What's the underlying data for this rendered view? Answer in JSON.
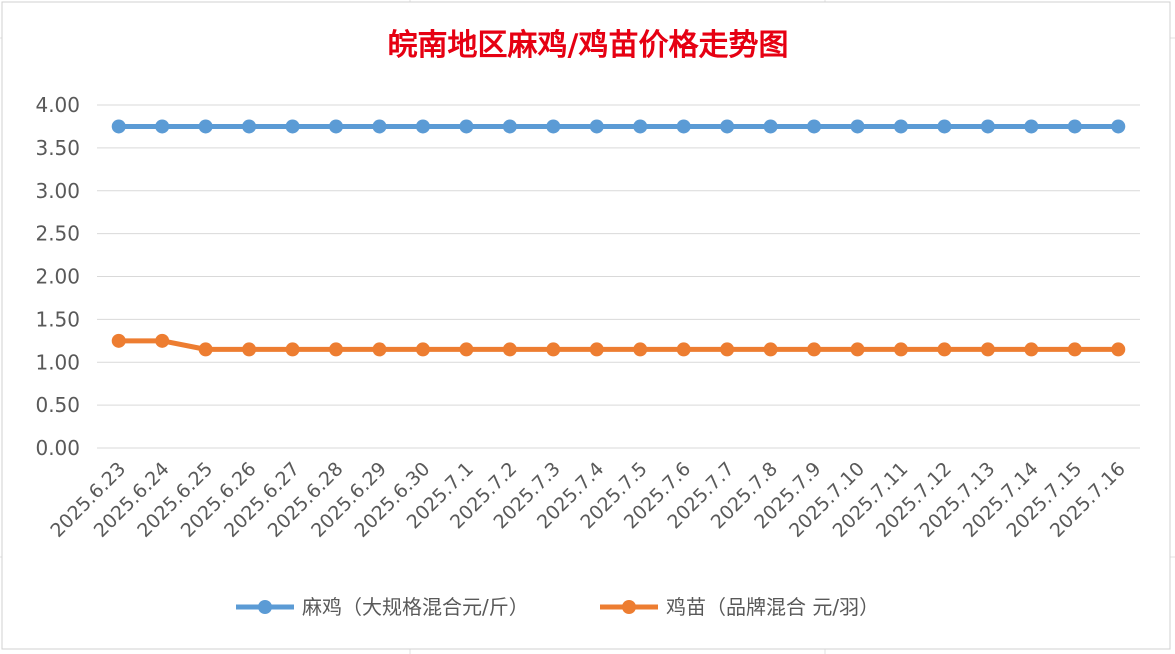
{
  "colors": {
    "title": "#e60012",
    "gridline": "#d9d9d9",
    "sheet_grid": "#e2e2e2",
    "series": [
      "#5b9bd5",
      "#ed7d31"
    ]
  },
  "chart_data": {
    "type": "line",
    "title": "皖南地区麻鸡/鸡苗价格走势图",
    "xlabel": "",
    "ylabel": "",
    "ylim": [
      0,
      4
    ],
    "ytick_step": 0.5,
    "ytick_decimals": 2,
    "grid": true,
    "legend_position": "bottom",
    "categories": [
      "2025.6.23",
      "2025.6.24",
      "2025.6.25",
      "2025.6.26",
      "2025.6.27",
      "2025.6.28",
      "2025.6.29",
      "2025.6.30",
      "2025.7.1",
      "2025.7.2",
      "2025.7.3",
      "2025.7.4",
      "2025.7.5",
      "2025.7.6",
      "2025.7.7",
      "2025.7.8",
      "2025.7.9",
      "2025.7.10",
      "2025.7.11",
      "2025.7.12",
      "2025.7.13",
      "2025.7.14",
      "2025.7.15",
      "2025.7.16"
    ],
    "series": [
      {
        "name": "麻鸡（大规格混合元/斤）",
        "values": [
          3.75,
          3.75,
          3.75,
          3.75,
          3.75,
          3.75,
          3.75,
          3.75,
          3.75,
          3.75,
          3.75,
          3.75,
          3.75,
          3.75,
          3.75,
          3.75,
          3.75,
          3.75,
          3.75,
          3.75,
          3.75,
          3.75,
          3.75,
          3.75
        ]
      },
      {
        "name": "鸡苗（品牌混合 元/羽）",
        "values": [
          1.25,
          1.25,
          1.15,
          1.15,
          1.15,
          1.15,
          1.15,
          1.15,
          1.15,
          1.15,
          1.15,
          1.15,
          1.15,
          1.15,
          1.15,
          1.15,
          1.15,
          1.15,
          1.15,
          1.15,
          1.15,
          1.15,
          1.15,
          1.15
        ]
      }
    ]
  }
}
